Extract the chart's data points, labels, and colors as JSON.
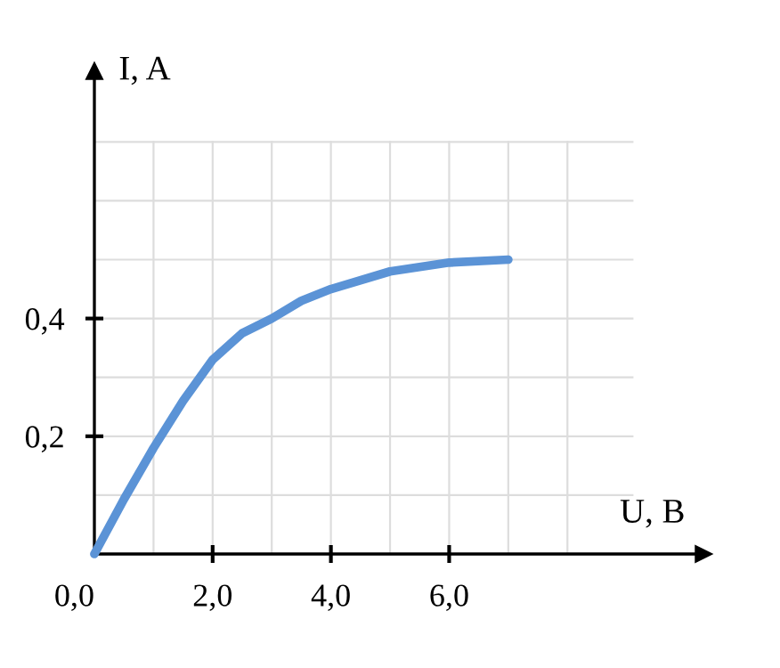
{
  "chart_data": {
    "type": "line",
    "xlabel": "U, B",
    "ylabel": "I, A",
    "x": [
      0,
      0.5,
      1,
      1.5,
      2,
      2.5,
      3,
      3.5,
      4,
      5,
      6,
      7
    ],
    "series": [
      {
        "color": "#5b93d6",
        "values": [
          0,
          0.093,
          0.18,
          0.26,
          0.33,
          0.375,
          0.4,
          0.43,
          0.45,
          0.48,
          0.495,
          0.5
        ]
      }
    ],
    "xlim": [
      0,
      10.3
    ],
    "ylim": [
      0,
      0.82
    ],
    "xticks": [
      {
        "value": 0,
        "label": "0,0"
      },
      {
        "value": 1,
        "label": null
      },
      {
        "value": 2,
        "label": "2,0"
      },
      {
        "value": 3,
        "label": null
      },
      {
        "value": 4,
        "label": "4,0"
      },
      {
        "value": 5,
        "label": null
      },
      {
        "value": 6,
        "label": "6,0"
      },
      {
        "value": 7,
        "label": null
      },
      {
        "value": 8,
        "label": null
      }
    ],
    "yticks": [
      {
        "value": 0.1,
        "label": null
      },
      {
        "value": 0.2,
        "label": "0,2"
      },
      {
        "value": 0.3,
        "label": null
      },
      {
        "value": 0.4,
        "label": "0,4"
      },
      {
        "value": 0.5,
        "label": null
      },
      {
        "value": 0.6,
        "label": null
      },
      {
        "value": 0.7,
        "label": null
      }
    ],
    "grid": true,
    "marker": "none",
    "line_style": "solid"
  }
}
